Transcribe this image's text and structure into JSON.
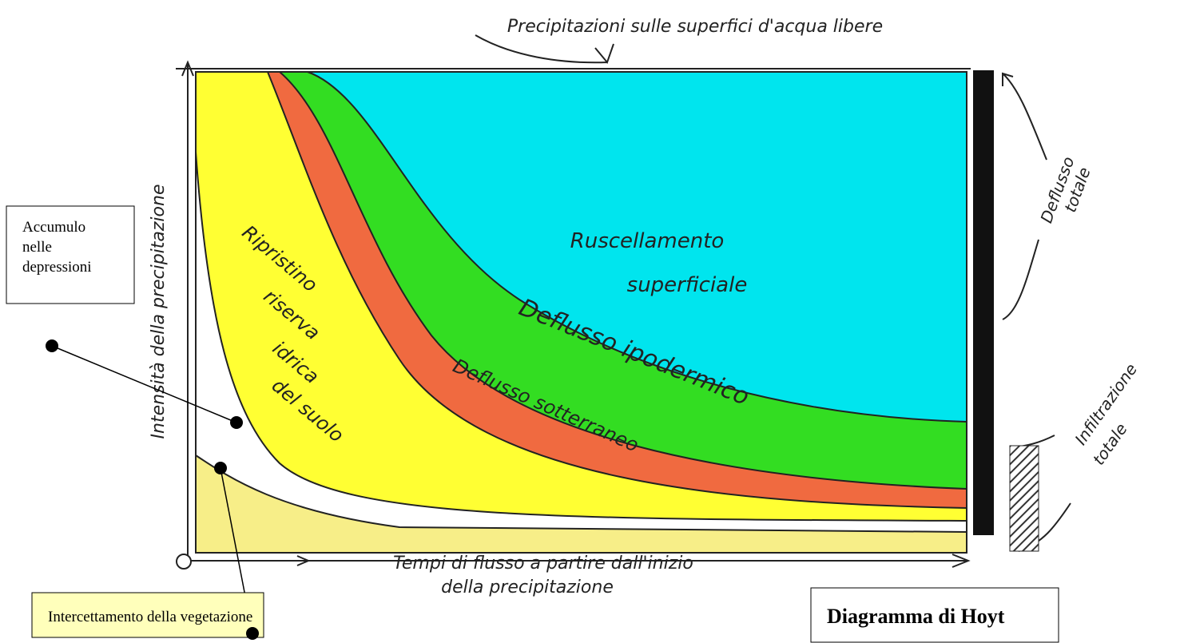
{
  "title": "Diagramma di Hoyt",
  "top_label": "Precipitazioni sulle superfici d'acqua libere",
  "y_axis_label": "Intensità della precipitazione",
  "x_axis_label": [
    "Tempi di flusso a partire dall'inizio",
    "della precipitazione"
  ],
  "regions": [
    {
      "label": [
        "Ruscellamento",
        "superficiale"
      ]
    },
    {
      "label": [
        "Deflusso ipodermico"
      ]
    },
    {
      "label": [
        "Deflusso sotterraneo"
      ]
    },
    {
      "label": [
        "Ripristino",
        "riserva",
        "idrica",
        "del suolo"
      ]
    }
  ],
  "side_labels": [
    {
      "label": [
        "Deflusso",
        "totale"
      ]
    },
    {
      "label": [
        "Infiltrazione",
        "totale"
      ]
    }
  ],
  "callouts": [
    {
      "label": [
        "Accumulo",
        "nelle",
        "depressioni"
      ]
    },
    {
      "label": [
        "Intercettamento della vegetazione"
      ]
    }
  ]
}
